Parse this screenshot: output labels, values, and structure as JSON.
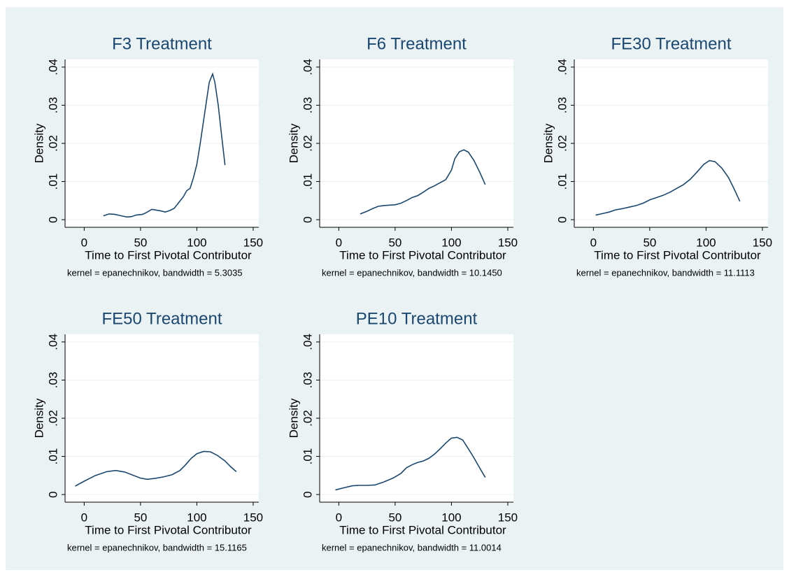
{
  "chart_data": [
    {
      "type": "line",
      "title": "F3 Treatment",
      "xlabel": "Time to First Pivotal Contributor",
      "ylabel": "Density",
      "note": "kernel = epanechnikov, bandwidth = 5.3035",
      "color": "#1a476f",
      "grid": true,
      "x": [
        17,
        22,
        27,
        33,
        38,
        42,
        46,
        52,
        56,
        60,
        64,
        68,
        72,
        76,
        80,
        84,
        88,
        91,
        94,
        97,
        100,
        103,
        106,
        109,
        111,
        114,
        116,
        119,
        122,
        125
      ],
      "values": [
        0.001,
        0.0015,
        0.0014,
        0.001,
        0.0007,
        0.0008,
        0.0012,
        0.0014,
        0.002,
        0.0027,
        0.0025,
        0.0023,
        0.002,
        0.0024,
        0.003,
        0.0045,
        0.006,
        0.0076,
        0.0082,
        0.011,
        0.0145,
        0.02,
        0.026,
        0.032,
        0.036,
        0.0382,
        0.036,
        0.03,
        0.022,
        0.0143
      ],
      "xlim": [
        -17,
        155
      ],
      "ylim": [
        -0.002,
        0.042
      ],
      "xticks": [
        0,
        50,
        100,
        150
      ],
      "yticks": [
        0,
        {
          "value": 0.01,
          "label": ".01"
        },
        {
          "value": 0.02,
          "label": ".02"
        },
        {
          "value": 0.03,
          "label": ".03"
        },
        {
          "value": 0.04,
          "label": ".04"
        }
      ]
    },
    {
      "type": "line",
      "title": "F6 Treatment",
      "xlabel": "Time to First Pivotal Contributor",
      "ylabel": "Density",
      "note": "kernel = epanechnikov, bandwidth = 10.1450",
      "color": "#1a476f",
      "grid": true,
      "x": [
        19,
        25,
        30,
        35,
        40,
        45,
        50,
        55,
        60,
        65,
        70,
        75,
        80,
        85,
        90,
        95,
        100,
        103,
        107,
        111,
        115,
        120,
        125,
        130
      ],
      "values": [
        0.0015,
        0.0022,
        0.0029,
        0.0035,
        0.0037,
        0.0038,
        0.0039,
        0.0043,
        0.005,
        0.0058,
        0.0063,
        0.0072,
        0.0082,
        0.0089,
        0.0097,
        0.0105,
        0.013,
        0.016,
        0.0178,
        0.0183,
        0.0177,
        0.0155,
        0.0125,
        0.0092
      ],
      "xlim": [
        -17,
        155
      ],
      "ylim": [
        -0.002,
        0.042
      ],
      "xticks": [
        0,
        50,
        100,
        150
      ],
      "yticks": [
        0,
        {
          "value": 0.01,
          "label": ".01"
        },
        {
          "value": 0.02,
          "label": ".02"
        },
        {
          "value": 0.03,
          "label": ".03"
        },
        {
          "value": 0.04,
          "label": ".04"
        }
      ]
    },
    {
      "type": "line",
      "title": "FE30 Treatment",
      "xlabel": "Time to First Pivotal Contributor",
      "ylabel": "Density",
      "note": "kernel = epanechnikov, bandwidth = 11.1113",
      "color": "#1a476f",
      "grid": true,
      "x": [
        2,
        8,
        14,
        20,
        26,
        32,
        38,
        44,
        50,
        56,
        62,
        68,
        74,
        80,
        86,
        92,
        98,
        103,
        108,
        114,
        120,
        125,
        130
      ],
      "values": [
        0.0012,
        0.0016,
        0.002,
        0.0026,
        0.0029,
        0.0033,
        0.0037,
        0.0043,
        0.0052,
        0.0058,
        0.0064,
        0.0072,
        0.0082,
        0.0092,
        0.0106,
        0.0125,
        0.0145,
        0.0155,
        0.0152,
        0.0135,
        0.011,
        0.008,
        0.0048
      ],
      "xlim": [
        -17,
        155
      ],
      "ylim": [
        -0.002,
        0.042
      ],
      "xticks": [
        0,
        50,
        100,
        150
      ],
      "yticks": [
        0,
        {
          "value": 0.01,
          "label": ".01"
        },
        {
          "value": 0.02,
          "label": ".02"
        },
        {
          "value": 0.03,
          "label": ".03"
        },
        {
          "value": 0.04,
          "label": ".04"
        }
      ]
    },
    {
      "type": "line",
      "title": "FE50 Treatment",
      "xlabel": "Time to First Pivotal Contributor",
      "ylabel": "Density",
      "note": "kernel = epanechnikov, bandwidth = 15.1165",
      "color": "#1a476f",
      "grid": true,
      "x": [
        -8,
        0,
        10,
        20,
        28,
        36,
        44,
        50,
        56,
        62,
        70,
        78,
        85,
        90,
        95,
        100,
        106,
        112,
        118,
        125,
        130,
        135
      ],
      "values": [
        0.0022,
        0.0035,
        0.005,
        0.006,
        0.0063,
        0.0059,
        0.005,
        0.0043,
        0.004,
        0.0042,
        0.0046,
        0.0052,
        0.0063,
        0.0078,
        0.0095,
        0.0107,
        0.0113,
        0.0112,
        0.0103,
        0.0088,
        0.0073,
        0.006
      ],
      "xlim": [
        -17,
        155
      ],
      "ylim": [
        -0.002,
        0.042
      ],
      "xticks": [
        0,
        50,
        100,
        150
      ],
      "yticks": [
        0,
        {
          "value": 0.01,
          "label": ".01"
        },
        {
          "value": 0.02,
          "label": ".02"
        },
        {
          "value": 0.03,
          "label": ".03"
        },
        {
          "value": 0.04,
          "label": ".04"
        }
      ]
    },
    {
      "type": "line",
      "title": "PE10 Treatment",
      "xlabel": "Time to First Pivotal Contributor",
      "ylabel": "Density",
      "note": "kernel = epanechnikov, bandwidth = 11.0014",
      "color": "#1a476f",
      "grid": true,
      "x": [
        -3,
        5,
        12,
        18,
        25,
        32,
        40,
        48,
        55,
        60,
        65,
        70,
        75,
        80,
        85,
        90,
        95,
        100,
        105,
        110,
        115,
        120,
        125,
        130
      ],
      "values": [
        0.0012,
        0.0018,
        0.0023,
        0.0024,
        0.0024,
        0.0025,
        0.0033,
        0.0043,
        0.0055,
        0.007,
        0.0078,
        0.0084,
        0.0088,
        0.0095,
        0.0106,
        0.012,
        0.0135,
        0.0148,
        0.015,
        0.0143,
        0.012,
        0.0096,
        0.007,
        0.0045
      ],
      "xlim": [
        -17,
        155
      ],
      "ylim": [
        -0.002,
        0.042
      ],
      "xticks": [
        0,
        50,
        100,
        150
      ],
      "yticks": [
        0,
        {
          "value": 0.01,
          "label": ".01"
        },
        {
          "value": 0.02,
          "label": ".02"
        },
        {
          "value": 0.03,
          "label": ".03"
        },
        {
          "value": 0.04,
          "label": ".04"
        }
      ]
    }
  ]
}
